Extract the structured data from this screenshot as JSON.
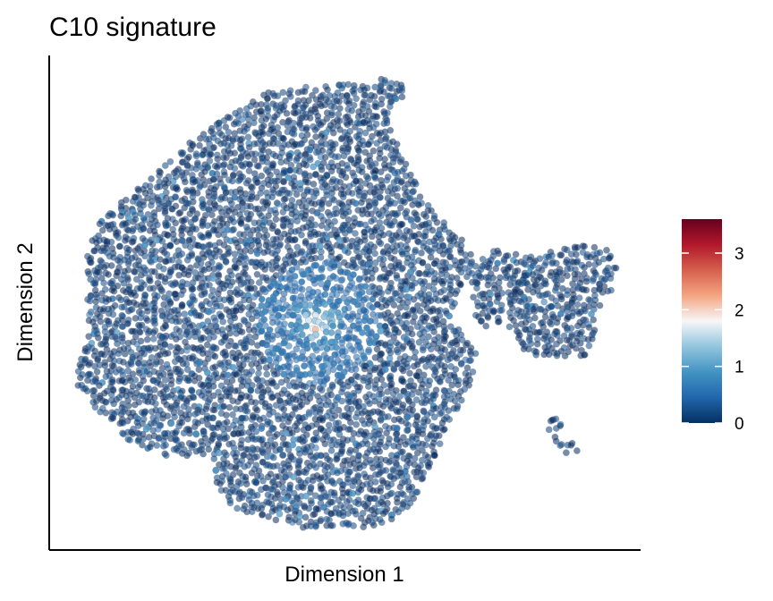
{
  "chart_data": {
    "type": "scatter",
    "title": "C10 signature",
    "xlabel": "Dimension 1",
    "ylabel": "Dimension 2",
    "grid": false,
    "legend": {
      "type": "colorbar",
      "placement": "right",
      "range": [
        0,
        3.6
      ],
      "ticks": [
        0,
        1,
        2,
        3
      ],
      "tick_labels": [
        "0",
        "1",
        "2",
        "3"
      ],
      "colors": [
        "#053061",
        "#2166ac",
        "#4393c3",
        "#92c5de",
        "#f7f7f7",
        "#f4a582",
        "#d6604d",
        "#b2182b",
        "#67001f"
      ]
    },
    "base_color": "#0a2c5f",
    "hotspot": {
      "center": [
        51,
        46
      ],
      "values": [
        2.0,
        1.6,
        1.3,
        1.0,
        0.8,
        0.6
      ]
    }
  }
}
